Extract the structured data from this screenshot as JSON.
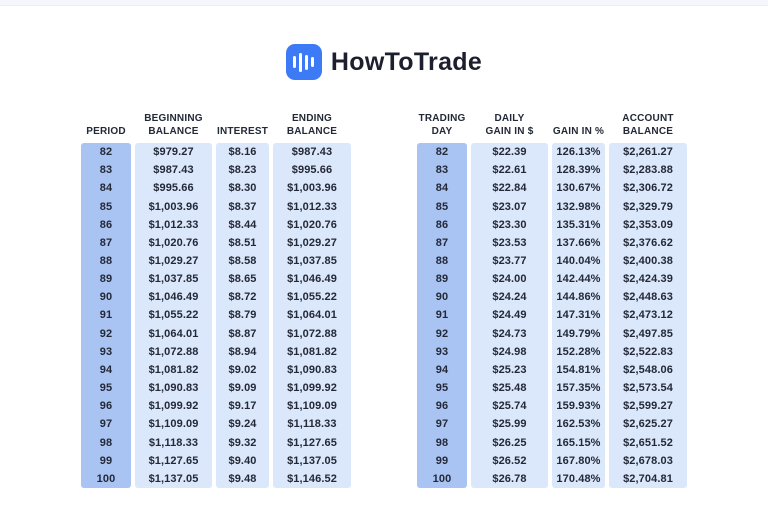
{
  "logo": {
    "brand": "HowToTrade",
    "icon": "bar-chart-icon"
  },
  "colors": {
    "logo_blue": "#3d7af5",
    "key_column_bg": "#a9c3f3",
    "cell_bg": "#dbe7fb",
    "text_dark": "#232937",
    "top_band": "#f5f6fb"
  },
  "chart_data": [
    {
      "type": "table",
      "name": "compound-periods-table",
      "columns": [
        "PERIOD",
        "BEGINNING\nBALANCE",
        "INTEREST",
        "ENDING\nBALANCE"
      ],
      "key_column": 0,
      "rows": [
        [
          "82",
          "$979.27",
          "$8.16",
          "$987.43"
        ],
        [
          "83",
          "$987.43",
          "$8.23",
          "$995.66"
        ],
        [
          "84",
          "$995.66",
          "$8.30",
          "$1,003.96"
        ],
        [
          "85",
          "$1,003.96",
          "$8.37",
          "$1,012.33"
        ],
        [
          "86",
          "$1,012.33",
          "$8.44",
          "$1,020.76"
        ],
        [
          "87",
          "$1,020.76",
          "$8.51",
          "$1,029.27"
        ],
        [
          "88",
          "$1,029.27",
          "$8.58",
          "$1,037.85"
        ],
        [
          "89",
          "$1,037.85",
          "$8.65",
          "$1,046.49"
        ],
        [
          "90",
          "$1,046.49",
          "$8.72",
          "$1,055.22"
        ],
        [
          "91",
          "$1,055.22",
          "$8.79",
          "$1,064.01"
        ],
        [
          "92",
          "$1,064.01",
          "$8.87",
          "$1,072.88"
        ],
        [
          "93",
          "$1,072.88",
          "$8.94",
          "$1,081.82"
        ],
        [
          "94",
          "$1,081.82",
          "$9.02",
          "$1,090.83"
        ],
        [
          "95",
          "$1,090.83",
          "$9.09",
          "$1,099.92"
        ],
        [
          "96",
          "$1,099.92",
          "$9.17",
          "$1,109.09"
        ],
        [
          "97",
          "$1,109.09",
          "$9.24",
          "$1,118.33"
        ],
        [
          "98",
          "$1,118.33",
          "$9.32",
          "$1,127.65"
        ],
        [
          "99",
          "$1,127.65",
          "$9.40",
          "$1,137.05"
        ],
        [
          "100",
          "$1,137.05",
          "$9.48",
          "$1,146.52"
        ]
      ]
    },
    {
      "type": "table",
      "name": "daily-gains-table",
      "columns": [
        "TRADING\nDAY",
        "DAILY\nGAIN IN $",
        "GAIN IN %",
        "ACCOUNT\nBALANCE"
      ],
      "key_column": 0,
      "rows": [
        [
          "82",
          "$22.39",
          "126.13%",
          "$2,261.27"
        ],
        [
          "83",
          "$22.61",
          "128.39%",
          "$2,283.88"
        ],
        [
          "84",
          "$22.84",
          "130.67%",
          "$2,306.72"
        ],
        [
          "85",
          "$23.07",
          "132.98%",
          "$2,329.79"
        ],
        [
          "86",
          "$23.30",
          "135.31%",
          "$2,353.09"
        ],
        [
          "87",
          "$23.53",
          "137.66%",
          "$2,376.62"
        ],
        [
          "88",
          "$23.77",
          "140.04%",
          "$2,400.38"
        ],
        [
          "89",
          "$24.00",
          "142.44%",
          "$2,424.39"
        ],
        [
          "90",
          "$24.24",
          "144.86%",
          "$2,448.63"
        ],
        [
          "91",
          "$24.49",
          "147.31%",
          "$2,473.12"
        ],
        [
          "92",
          "$24.73",
          "149.79%",
          "$2,497.85"
        ],
        [
          "93",
          "$24.98",
          "152.28%",
          "$2,522.83"
        ],
        [
          "94",
          "$25.23",
          "154.81%",
          "$2,548.06"
        ],
        [
          "95",
          "$25.48",
          "157.35%",
          "$2,573.54"
        ],
        [
          "96",
          "$25.74",
          "159.93%",
          "$2,599.27"
        ],
        [
          "97",
          "$25.99",
          "162.53%",
          "$2,625.27"
        ],
        [
          "98",
          "$26.25",
          "165.15%",
          "$2,651.52"
        ],
        [
          "99",
          "$26.52",
          "167.80%",
          "$2,678.03"
        ],
        [
          "100",
          "$26.78",
          "170.48%",
          "$2,704.81"
        ]
      ]
    }
  ]
}
